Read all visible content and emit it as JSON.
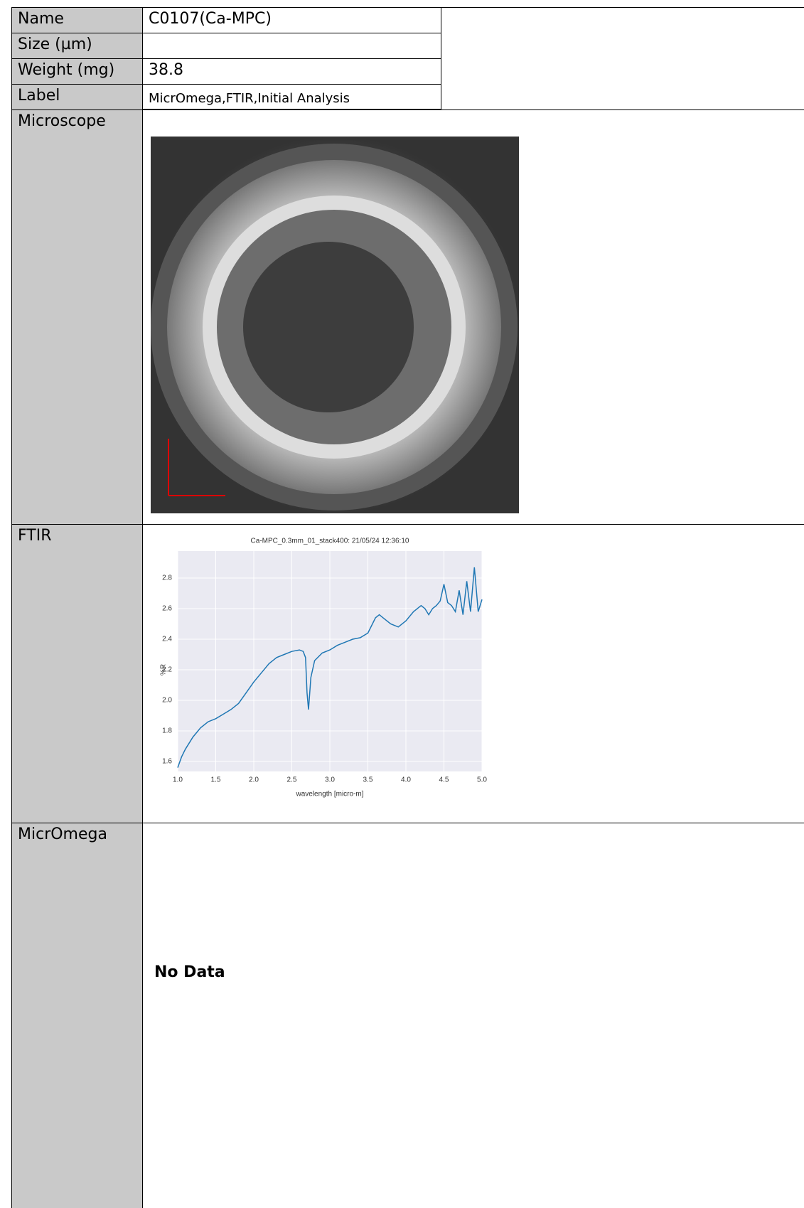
{
  "table": {
    "rows": [
      {
        "label": "Name",
        "value": "C0107(Ca-MPC)"
      },
      {
        "label": "Size (µm)"
      },
      {
        "label": "Weight (mg)",
        "value": "38.8"
      },
      {
        "label": "Label",
        "value": "MicrOmega,FTIR,Initial Analysis"
      },
      {
        "label": "Microscope"
      },
      {
        "label": "FTIR"
      },
      {
        "label": "MicrOmega",
        "value": "No Data"
      }
    ]
  },
  "chart_data": {
    "type": "line",
    "title": "Ca-MPC_0.3mm_01_stack400:  21/05/24 12:36:10",
    "x_label": "wavelength [micro-m]",
    "y_label": "%R",
    "x": [
      1.0,
      1.05,
      1.1,
      1.2,
      1.3,
      1.4,
      1.5,
      1.6,
      1.7,
      1.8,
      1.9,
      2.0,
      2.1,
      2.2,
      2.3,
      2.4,
      2.5,
      2.6,
      2.65,
      2.68,
      2.7,
      2.72,
      2.75,
      2.8,
      2.9,
      3.0,
      3.1,
      3.2,
      3.3,
      3.4,
      3.5,
      3.6,
      3.65,
      3.7,
      3.8,
      3.9,
      4.0,
      4.1,
      4.2,
      4.25,
      4.3,
      4.35,
      4.4,
      4.45,
      4.5,
      4.55,
      4.6,
      4.65,
      4.7,
      4.75,
      4.8,
      4.85,
      4.9,
      4.95,
      5.0
    ],
    "values": [
      1.56,
      1.63,
      1.68,
      1.76,
      1.82,
      1.86,
      1.88,
      1.91,
      1.94,
      1.98,
      2.05,
      2.12,
      2.18,
      2.24,
      2.28,
      2.3,
      2.32,
      2.33,
      2.32,
      2.28,
      2.05,
      1.94,
      2.15,
      2.26,
      2.31,
      2.33,
      2.36,
      2.38,
      2.4,
      2.41,
      2.44,
      2.54,
      2.56,
      2.54,
      2.5,
      2.48,
      2.52,
      2.58,
      2.62,
      2.6,
      2.56,
      2.6,
      2.62,
      2.65,
      2.76,
      2.64,
      2.62,
      2.58,
      2.72,
      2.56,
      2.78,
      2.58,
      2.87,
      2.58,
      2.66
    ],
    "color": "#1f77b4",
    "xlim": [
      1,
      5
    ],
    "ylim": [
      1.535,
      2.977
    ],
    "xticks": [
      {
        "value": 1,
        "label": "1.0"
      },
      1.5,
      {
        "value": 2,
        "label": "2.0"
      },
      2.5,
      {
        "value": 3,
        "label": "3.0"
      },
      3.5,
      {
        "value": 4,
        "label": "4.0"
      },
      4.5,
      {
        "value": 5,
        "label": "5.0"
      }
    ],
    "yticks": [
      1.6,
      1.8,
      {
        "value": 2,
        "label": "2.0"
      },
      2.2,
      2.4,
      2.6,
      2.8
    ],
    "grid": true
  }
}
